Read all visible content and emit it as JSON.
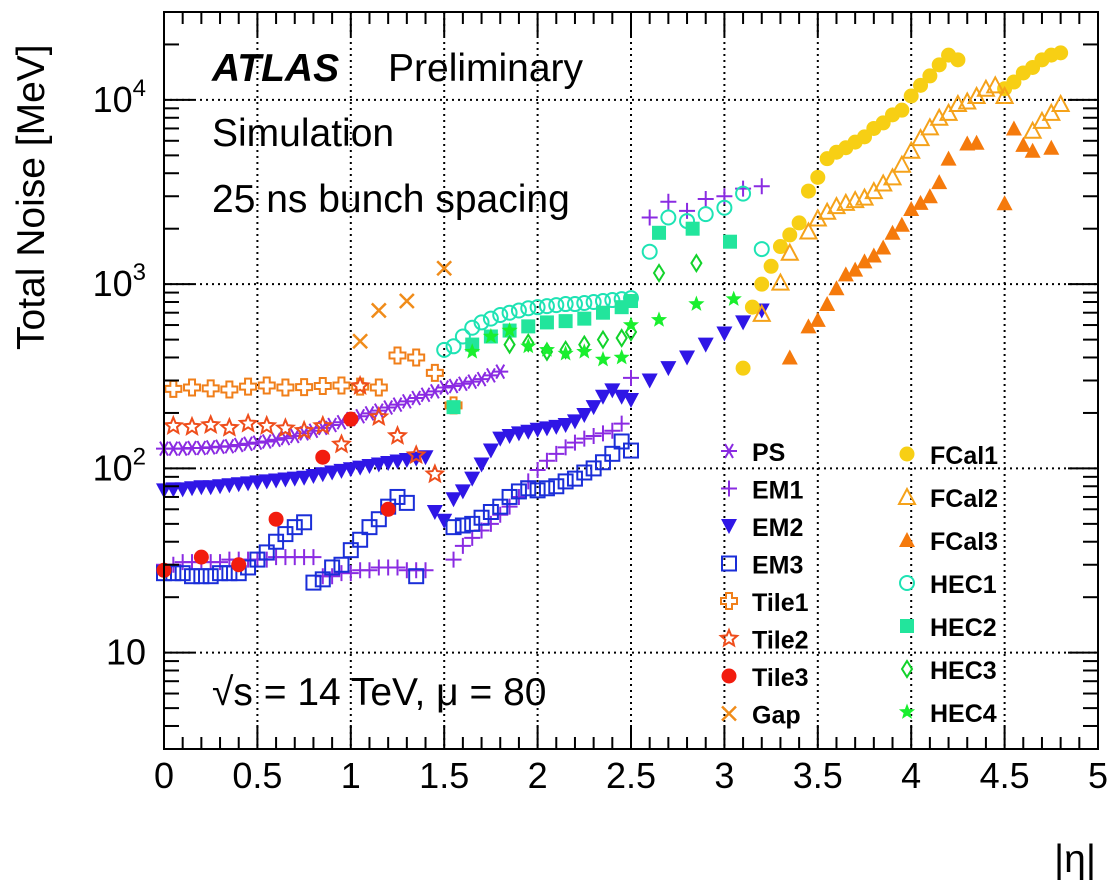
{
  "chart_data": {
    "type": "scatter",
    "yscale": "log",
    "xlim": [
      0,
      5
    ],
    "ylim": [
      3,
      30000
    ],
    "grid": true,
    "xlabel": "|η|",
    "ylabel": "Total Noise [MeV]",
    "x_ticks": [
      0,
      0.5,
      1,
      1.5,
      2,
      2.5,
      3,
      3.5,
      4,
      4.5,
      5
    ],
    "x_tick_labels": [
      "0",
      "0.5",
      "1",
      "1.5",
      "2",
      "2.5",
      "3",
      "3.5",
      "4",
      "4.5",
      "5"
    ],
    "y_ticks": [
      10,
      100,
      1000,
      10000
    ],
    "y_tick_labels": [
      {
        "base": "10",
        "exp": ""
      },
      {
        "base": "10",
        "exp": "2"
      },
      {
        "base": "10",
        "exp": "3"
      },
      {
        "base": "10",
        "exp": "4"
      }
    ],
    "annotations": {
      "atlas": "ATLAS",
      "preliminary": "Preliminary",
      "simulation": "Simulation",
      "bunch": "25 ns bunch spacing",
      "energy": "√s = 14 TeV, μ = 80"
    },
    "legend_position": "bottom-right",
    "series": [
      {
        "name": "PS",
        "color": "#8a2be2",
        "marker": "asterisk",
        "x": [
          0.0,
          0.05,
          0.1,
          0.15,
          0.2,
          0.25,
          0.3,
          0.35,
          0.4,
          0.45,
          0.5,
          0.55,
          0.6,
          0.65,
          0.7,
          0.75,
          0.8,
          0.85,
          0.9,
          0.95,
          1.0,
          1.05,
          1.1,
          1.15,
          1.2,
          1.25,
          1.3,
          1.35,
          1.4,
          1.45,
          1.5,
          1.55,
          1.6,
          1.65,
          1.7,
          1.75,
          1.8
        ],
        "y": [
          128,
          128,
          128,
          129,
          129,
          130,
          131,
          132,
          134,
          136,
          138,
          140,
          143,
          146,
          150,
          155,
          160,
          166,
          172,
          178,
          185,
          192,
          199,
          206,
          214,
          222,
          231,
          241,
          251,
          262,
          275,
          280,
          288,
          296,
          305,
          320,
          335
        ]
      },
      {
        "name": "EM1",
        "color": "#8a2be2",
        "marker": "plus",
        "x": [
          0.0,
          0.05,
          0.1,
          0.15,
          0.2,
          0.25,
          0.3,
          0.35,
          0.4,
          0.45,
          0.5,
          0.55,
          0.6,
          0.65,
          0.7,
          0.75,
          0.8,
          0.85,
          0.9,
          0.95,
          1.0,
          1.05,
          1.1,
          1.15,
          1.2,
          1.25,
          1.3,
          1.35,
          1.4,
          1.55,
          1.6,
          1.65,
          1.7,
          1.75,
          1.8,
          1.85,
          1.9,
          1.95,
          2.0,
          2.05,
          2.1,
          2.15,
          2.2,
          2.25,
          2.3,
          2.35,
          2.4,
          2.45,
          2.5,
          2.6,
          2.7,
          2.8,
          2.9,
          3.0,
          3.1,
          3.2
        ],
        "y": [
          30,
          30,
          31,
          31,
          31,
          31,
          31,
          32,
          32,
          32,
          32,
          32,
          33,
          33,
          33,
          33,
          33,
          26,
          26,
          27,
          27,
          28,
          28,
          29,
          29,
          29,
          28,
          28,
          28,
          32,
          38,
          42,
          46,
          50,
          56,
          62,
          70,
          85,
          98,
          110,
          120,
          130,
          138,
          145,
          150,
          155,
          160,
          175,
          310,
          2300,
          2800,
          2500,
          2900,
          3000,
          3300,
          3400
        ]
      },
      {
        "name": "EM2",
        "color": "#2f16e6",
        "marker": "triangle-down",
        "x": [
          0.0,
          0.05,
          0.1,
          0.15,
          0.2,
          0.25,
          0.3,
          0.35,
          0.4,
          0.45,
          0.5,
          0.55,
          0.6,
          0.65,
          0.7,
          0.75,
          0.8,
          0.85,
          0.9,
          0.95,
          1.0,
          1.05,
          1.1,
          1.15,
          1.2,
          1.25,
          1.3,
          1.35,
          1.4,
          1.45,
          1.5,
          1.55,
          1.6,
          1.65,
          1.7,
          1.75,
          1.8,
          1.85,
          1.9,
          1.95,
          2.0,
          2.05,
          2.1,
          2.15,
          2.2,
          2.25,
          2.3,
          2.35,
          2.4,
          2.45,
          2.5,
          2.6,
          2.7,
          2.8,
          2.9,
          3.0,
          3.1,
          3.2
        ],
        "y": [
          76,
          77,
          77,
          78,
          79,
          79,
          80,
          81,
          82,
          83,
          84,
          85,
          86,
          87,
          88,
          89,
          91,
          93,
          95,
          97,
          99,
          101,
          103,
          105,
          107,
          109,
          111,
          113,
          115,
          58,
          52,
          68,
          75,
          88,
          105,
          125,
          145,
          150,
          155,
          158,
          162,
          165,
          168,
          172,
          180,
          195,
          215,
          245,
          265,
          245,
          235,
          300,
          350,
          400,
          470,
          540,
          620,
          720
        ]
      },
      {
        "name": "EM3",
        "color": "#1a2ed8",
        "marker": "square-open",
        "x": [
          0.0,
          0.05,
          0.1,
          0.15,
          0.2,
          0.25,
          0.3,
          0.35,
          0.4,
          0.45,
          0.5,
          0.55,
          0.6,
          0.65,
          0.7,
          0.75,
          0.8,
          0.85,
          0.9,
          0.95,
          1.0,
          1.05,
          1.1,
          1.15,
          1.2,
          1.25,
          1.3,
          1.35,
          1.55,
          1.6,
          1.65,
          1.7,
          1.75,
          1.8,
          1.85,
          1.9,
          1.95,
          2.0,
          2.05,
          2.1,
          2.15,
          2.2,
          2.25,
          2.3,
          2.35,
          2.4,
          2.45,
          2.5
        ],
        "y": [
          27,
          27,
          27,
          26,
          26,
          26,
          27,
          27,
          27,
          29,
          32,
          35,
          40,
          44,
          48,
          51,
          24,
          25,
          29,
          30,
          36,
          41,
          48,
          53,
          62,
          70,
          65,
          26,
          48,
          49,
          50,
          54,
          58,
          62,
          70,
          75,
          78,
          76,
          78,
          80,
          85,
          88,
          95,
          100,
          108,
          120,
          140,
          125
        ]
      },
      {
        "name": "Tile1",
        "color": "#f07f1a",
        "marker": "cross-open",
        "x": [
          0.05,
          0.15,
          0.25,
          0.35,
          0.45,
          0.55,
          0.65,
          0.75,
          0.85,
          0.95,
          1.05,
          1.15,
          1.25,
          1.35,
          1.45,
          1.55
        ],
        "y": [
          270,
          275,
          272,
          268,
          278,
          282,
          275,
          276,
          280,
          282,
          278,
          275,
          410,
          400,
          330,
          220
        ]
      },
      {
        "name": "Tile2",
        "color": "#ef4e1c",
        "marker": "star-open",
        "x": [
          0.05,
          0.15,
          0.25,
          0.35,
          0.45,
          0.55,
          0.65,
          0.75,
          0.85,
          0.95,
          1.05,
          1.15,
          1.25,
          1.35,
          1.45
        ],
        "y": [
          170,
          168,
          172,
          166,
          175,
          170,
          165,
          160,
          170,
          135,
          280,
          190,
          150,
          118,
          93
        ]
      },
      {
        "name": "Tile3",
        "color": "#f21c0e",
        "marker": "circle-filled",
        "x": [
          0.0,
          0.2,
          0.4,
          0.6,
          0.85,
          1.0,
          1.2
        ],
        "y": [
          28,
          33,
          30,
          53,
          115,
          185,
          60
        ]
      },
      {
        "name": "Gap",
        "color": "#f08c1a",
        "marker": "x",
        "x": [
          1.05,
          1.15,
          1.3,
          1.5
        ],
        "y": [
          490,
          720,
          810,
          1220
        ]
      },
      {
        "name": "FCal1",
        "color": "#f7cf14",
        "marker": "circle-filled",
        "x": [
          3.1,
          3.15,
          3.2,
          3.25,
          3.3,
          3.35,
          3.4,
          3.45,
          3.5,
          3.55,
          3.6,
          3.65,
          3.7,
          3.75,
          3.8,
          3.85,
          3.9,
          3.95,
          4.0,
          4.05,
          4.1,
          4.15,
          4.2,
          4.25,
          4.5,
          4.55,
          4.6,
          4.65,
          4.7,
          4.75,
          4.8
        ],
        "y": [
          350,
          750,
          1000,
          1250,
          1600,
          1850,
          2150,
          3200,
          3800,
          4800,
          5200,
          5500,
          5900,
          6300,
          7000,
          7500,
          8300,
          8800,
          10500,
          12000,
          13500,
          15500,
          17500,
          16500,
          11500,
          12500,
          14000,
          15000,
          16500,
          17500,
          18000
        ]
      },
      {
        "name": "FCal2",
        "color": "#f5a21a",
        "marker": "triangle-up-open",
        "x": [
          3.2,
          3.3,
          3.35,
          3.45,
          3.5,
          3.55,
          3.6,
          3.65,
          3.7,
          3.75,
          3.8,
          3.85,
          3.9,
          3.95,
          4.0,
          4.05,
          4.1,
          4.15,
          4.2,
          4.25,
          4.3,
          4.35,
          4.4,
          4.45,
          4.5,
          4.65,
          4.7,
          4.75,
          4.8
        ],
        "y": [
          690,
          1020,
          1480,
          1930,
          2270,
          2470,
          2650,
          2760,
          2860,
          2950,
          3200,
          3520,
          3800,
          4450,
          5300,
          6200,
          7100,
          8000,
          8500,
          9500,
          9800,
          10500,
          11500,
          12000,
          10500,
          6800,
          7700,
          8500,
          9500
        ]
      },
      {
        "name": "FCal3",
        "color": "#f57a0c",
        "marker": "triangle-up-filled",
        "x": [
          3.35,
          3.45,
          3.5,
          3.55,
          3.6,
          3.65,
          3.7,
          3.75,
          3.8,
          3.85,
          3.9,
          3.95,
          4.0,
          4.05,
          4.1,
          4.15,
          4.2,
          4.3,
          4.35,
          4.5,
          4.55,
          4.6,
          4.65,
          4.75
        ],
        "y": [
          400,
          590,
          640,
          780,
          950,
          1130,
          1200,
          1330,
          1430,
          1580,
          1900,
          2100,
          2560,
          2760,
          3000,
          3580,
          4800,
          5800,
          5850,
          2750,
          7000,
          5700,
          5300,
          5500
        ]
      },
      {
        "name": "HEC1",
        "color": "#1ee3b4",
        "marker": "circle-open",
        "x": [
          1.5,
          1.55,
          1.6,
          1.65,
          1.7,
          1.75,
          1.8,
          1.85,
          1.9,
          1.95,
          2.0,
          2.05,
          2.1,
          2.15,
          2.2,
          2.25,
          2.3,
          2.35,
          2.4,
          2.45,
          2.5,
          2.6,
          2.7,
          2.8,
          2.9,
          3.0,
          3.1,
          3.2
        ],
        "y": [
          440,
          460,
          520,
          580,
          620,
          650,
          680,
          700,
          720,
          740,
          750,
          760,
          770,
          780,
          780,
          790,
          800,
          810,
          820,
          830,
          840,
          1500,
          2300,
          2200,
          2400,
          2600,
          3100,
          1550
        ]
      },
      {
        "name": "HEC2",
        "color": "#22e59c",
        "marker": "square-filled",
        "x": [
          1.55,
          1.65,
          1.75,
          1.85,
          1.95,
          2.05,
          2.15,
          2.25,
          2.35,
          2.45,
          2.5,
          2.65,
          2.83,
          3.03
        ],
        "y": [
          215,
          470,
          520,
          560,
          590,
          620,
          630,
          650,
          700,
          750,
          810,
          1900,
          2000,
          1700
        ]
      },
      {
        "name": "HEC3",
        "color": "#12d32b",
        "marker": "diamond-open",
        "x": [
          1.85,
          1.95,
          2.05,
          2.15,
          2.25,
          2.35,
          2.45,
          2.5,
          2.65,
          2.85
        ],
        "y": [
          470,
          480,
          430,
          440,
          470,
          500,
          510,
          550,
          1150,
          1300
        ]
      },
      {
        "name": "HEC4",
        "color": "#19ef2e",
        "marker": "star-filled",
        "x": [
          1.65,
          1.75,
          1.85,
          1.95,
          2.05,
          2.15,
          2.25,
          2.35,
          2.45,
          2.5,
          2.65,
          2.85,
          3.05
        ],
        "y": [
          430,
          520,
          560,
          460,
          440,
          420,
          430,
          390,
          400,
          600,
          640,
          780,
          830
        ]
      }
    ]
  }
}
